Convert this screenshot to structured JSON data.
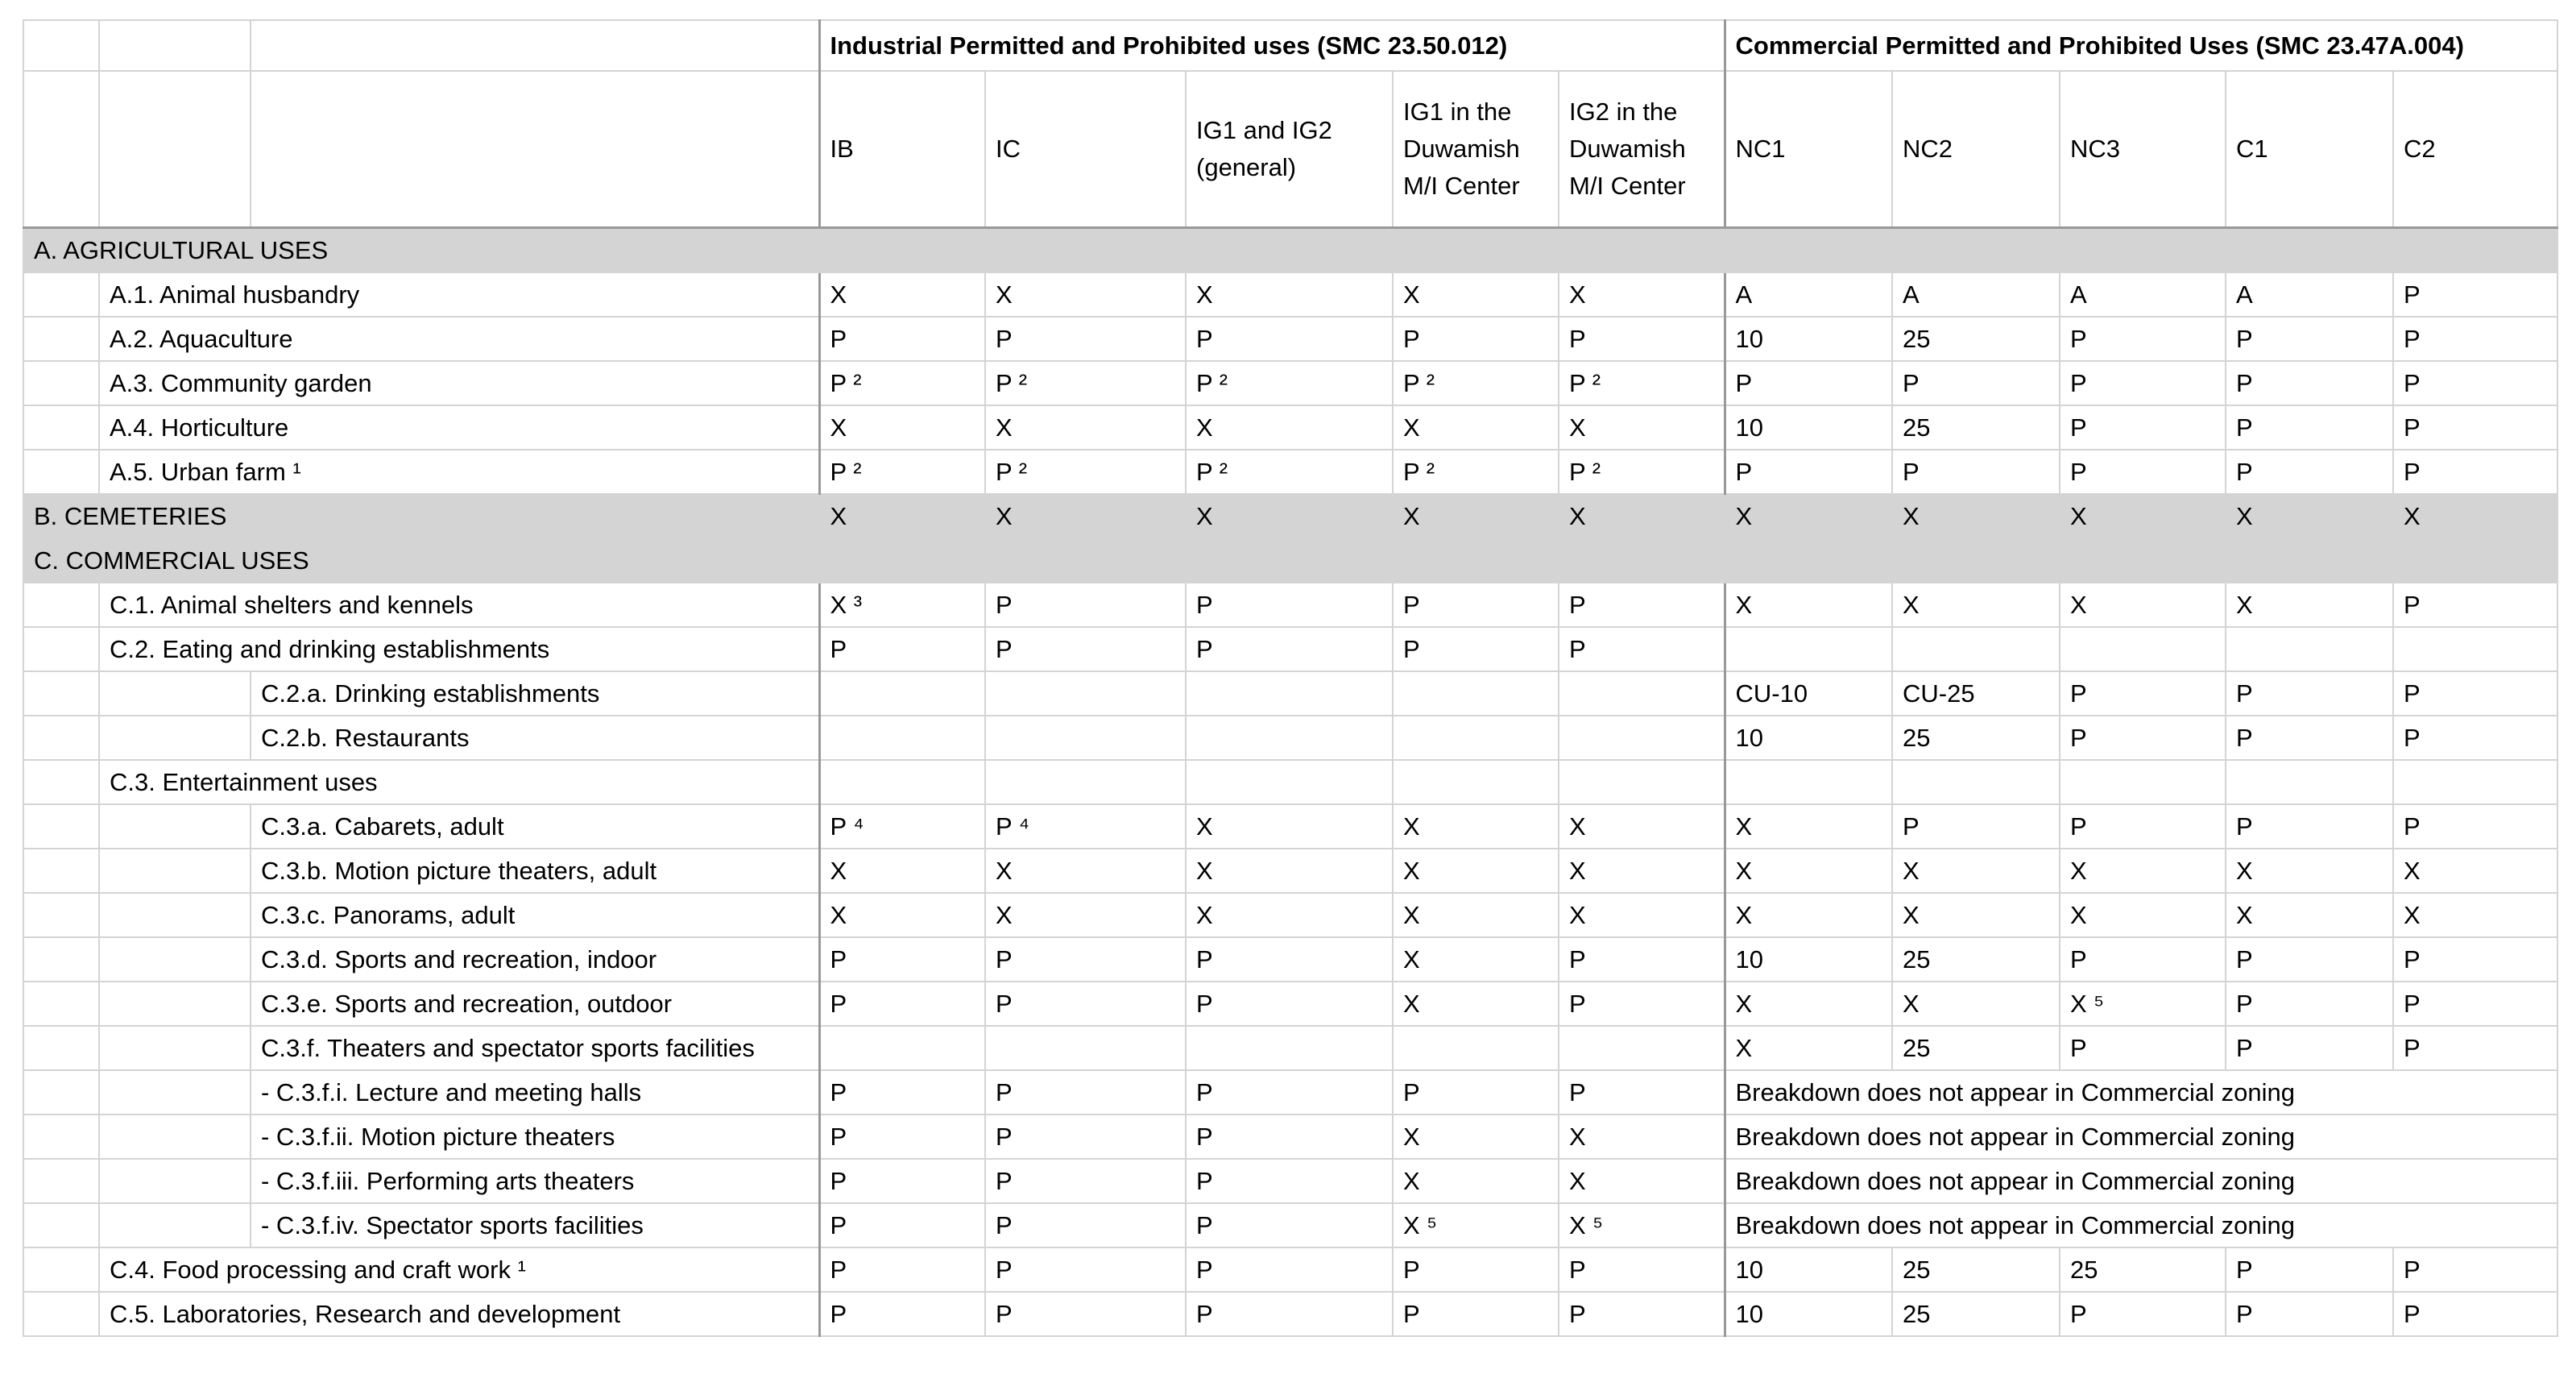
{
  "header": {
    "groups": [
      "Industrial Permitted and Prohibited uses (SMC 23.50.012)",
      "Commercial Permitted and Prohibited Uses (SMC 23.47A.004)"
    ],
    "columns": [
      "IB",
      "IC",
      "IG1 and IG2 (general)",
      "IG1 in the Duwamish M/I Center",
      "IG2 in the Duwamish M/I Center",
      "NC1",
      "NC2",
      "NC3",
      "C1",
      "C2"
    ]
  },
  "rows": [
    {
      "label": "A. AGRICULTURAL USES",
      "level": 0,
      "cells": [
        null,
        null,
        null,
        null,
        null,
        null,
        null,
        null,
        null,
        null
      ]
    },
    {
      "label": "A.1. Animal husbandry",
      "level": 1,
      "cells": [
        "X",
        "X",
        "X",
        "X",
        "X",
        "A",
        "A",
        "A",
        "A",
        "P"
      ]
    },
    {
      "label": "A.2. Aquaculture",
      "level": 1,
      "cells": [
        "P",
        "P",
        "P",
        "P",
        "P",
        "10",
        "25",
        "P",
        "P",
        "P"
      ]
    },
    {
      "label": "A.3. Community garden",
      "level": 1,
      "cells": [
        "P ²",
        "P ²",
        "P ²",
        "P ²",
        "P ²",
        "P",
        "P",
        "P",
        "P",
        "P"
      ]
    },
    {
      "label": "A.4. Horticulture",
      "level": 1,
      "cells": [
        "X",
        "X",
        "X",
        "X",
        "X",
        "10",
        "25",
        "P",
        "P",
        "P"
      ]
    },
    {
      "label": "A.5. Urban farm ¹",
      "level": 1,
      "cells": [
        "P ²",
        "P ²",
        "P ²",
        "P ²",
        "P ²",
        "P",
        "P",
        "P",
        "P",
        "P"
      ]
    },
    {
      "label": "B. CEMETERIES",
      "level": 0,
      "cells": [
        "X",
        "X",
        "X",
        "X",
        "X",
        "X",
        "X",
        "X",
        "X",
        "X"
      ]
    },
    {
      "label": "C. COMMERCIAL USES",
      "level": 0,
      "cells": [
        null,
        null,
        null,
        null,
        null,
        null,
        null,
        null,
        null,
        null
      ]
    },
    {
      "label": "C.1. Animal shelters and kennels",
      "level": 1,
      "cells": [
        "X ³",
        "P",
        "P",
        "P",
        "P",
        "X",
        "X",
        "X",
        "X",
        "P"
      ]
    },
    {
      "label": "C.2. Eating and drinking establishments",
      "level": 1,
      "cells": [
        "P",
        "P",
        "P",
        "P",
        "P",
        null,
        null,
        null,
        null,
        null
      ]
    },
    {
      "label": "C.2.a. Drinking establishments",
      "level": 2,
      "cells": [
        null,
        null,
        null,
        null,
        null,
        "CU-10",
        "CU-25",
        "P",
        "P",
        "P"
      ]
    },
    {
      "label": "C.2.b. Restaurants",
      "level": 2,
      "cells": [
        null,
        null,
        null,
        null,
        null,
        "10",
        "25",
        "P",
        "P",
        "P"
      ]
    },
    {
      "label": "C.3. Entertainment uses",
      "level": 1,
      "cells": [
        null,
        null,
        null,
        null,
        null,
        null,
        null,
        null,
        null,
        null
      ]
    },
    {
      "label": "C.3.a. Cabarets, adult",
      "level": 2,
      "cells": [
        "P ⁴",
        "P ⁴",
        "X",
        "X",
        "X",
        "X",
        "P",
        "P",
        "P",
        "P"
      ]
    },
    {
      "label": "C.3.b. Motion picture theaters, adult",
      "level": 2,
      "cells": [
        "X",
        "X",
        "X",
        "X",
        "X",
        "X",
        "X",
        "X",
        "X",
        "X"
      ]
    },
    {
      "label": "C.3.c. Panorams, adult",
      "level": 2,
      "cells": [
        "X",
        "X",
        "X",
        "X",
        "X",
        "X",
        "X",
        "X",
        "X",
        "X"
      ]
    },
    {
      "label": "C.3.d. Sports and recreation, indoor",
      "level": 2,
      "cells": [
        "P",
        "P",
        "P",
        "X",
        "P",
        "10",
        "25",
        "P",
        "P",
        "P"
      ]
    },
    {
      "label": "C.3.e. Sports and recreation, outdoor",
      "level": 2,
      "cells": [
        "P",
        "P",
        "P",
        "X",
        "P",
        "X",
        "X",
        "X ⁵",
        "P",
        "P"
      ]
    },
    {
      "label": "C.3.f. Theaters and spectator sports facilities",
      "level": 2,
      "cells": [
        null,
        null,
        null,
        null,
        null,
        "X",
        "25",
        "P",
        "P",
        "P"
      ]
    },
    {
      "label": "- C.3.f.i. Lecture and meeting halls",
      "level": 2,
      "cells": [
        "P",
        "P",
        "P",
        "P",
        "P"
      ],
      "note": "Breakdown does not appear in Commercial zoning"
    },
    {
      "label": "- C.3.f.ii. Motion picture theaters",
      "level": 2,
      "cells": [
        "P",
        "P",
        "P",
        "X",
        "X"
      ],
      "note": "Breakdown does not appear in Commercial zoning"
    },
    {
      "label": "- C.3.f.iii. Performing arts theaters",
      "level": 2,
      "cells": [
        "P",
        "P",
        "P",
        "X",
        "X"
      ],
      "note": "Breakdown does not appear in Commercial zoning"
    },
    {
      "label": "- C.3.f.iv. Spectator sports facilities",
      "level": 2,
      "cells": [
        "P",
        "P",
        "P",
        "X ⁵",
        "X ⁵"
      ],
      "note": "Breakdown does not appear in Commercial zoning"
    },
    {
      "label": "C.4. Food processing and craft work ¹",
      "level": 1,
      "cells": [
        "P",
        "P",
        "P",
        "P",
        "P",
        "10",
        "25",
        "25",
        "P",
        "P"
      ]
    },
    {
      "label": "C.5. Laboratories, Research and development",
      "level": 1,
      "cells": [
        "P",
        "P",
        "P",
        "P",
        "P",
        "10",
        "25",
        "P",
        "P",
        "P"
      ]
    }
  ]
}
